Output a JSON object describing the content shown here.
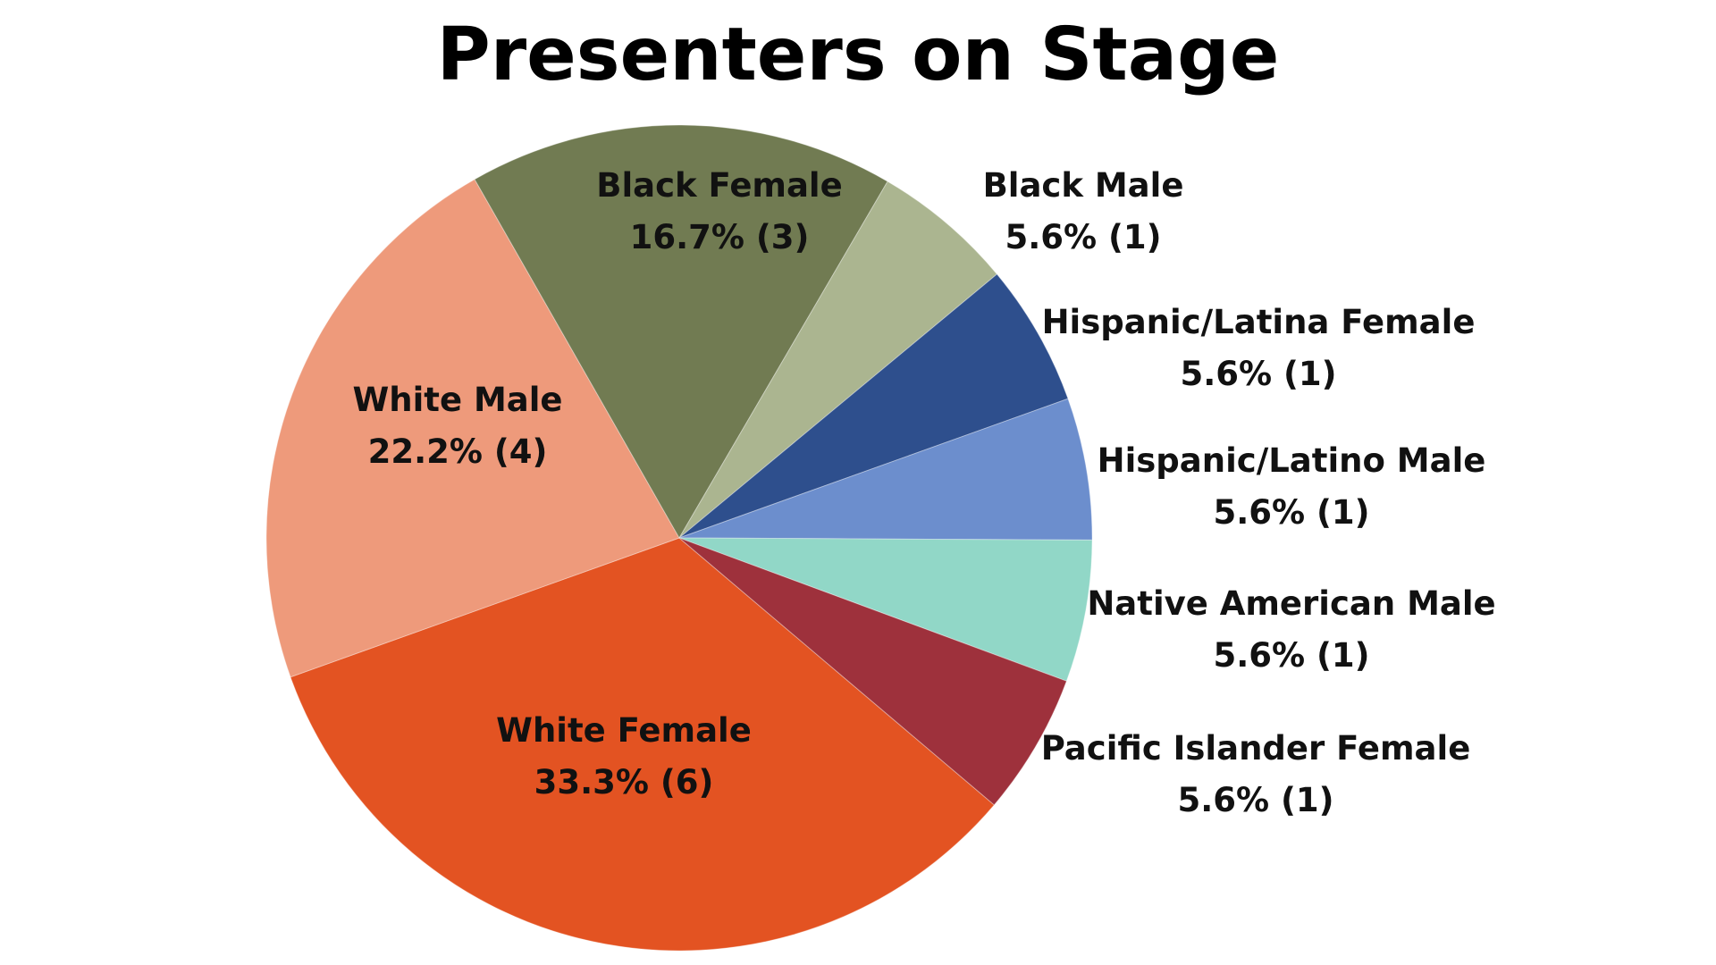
{
  "chart_data": {
    "type": "pie",
    "title": "Presenters on Stage",
    "slices": [
      {
        "name": "White Female",
        "percent_label": "33.3% (6)",
        "value": 6,
        "color": "#E35322"
      },
      {
        "name": "White Male",
        "percent_label": "22.2% (4)",
        "value": 4,
        "color": "#EE9A7B"
      },
      {
        "name": "Black Female",
        "percent_label": "16.7% (3)",
        "value": 3,
        "color": "#717B52"
      },
      {
        "name": "Black Male",
        "percent_label": "5.6% (1)",
        "value": 1,
        "color": "#ABB590"
      },
      {
        "name": "Hispanic/Latina Female",
        "percent_label": "5.6% (1)",
        "value": 1,
        "color": "#2E4F8D"
      },
      {
        "name": "Hispanic/Latino Male",
        "percent_label": "5.6% (1)",
        "value": 1,
        "color": "#6C8ECD"
      },
      {
        "name": "Native American Male",
        "percent_label": "5.6% (1)",
        "value": 1,
        "color": "#91D7C7"
      },
      {
        "name": "Pacific Islander Female",
        "percent_label": "5.6% (1)",
        "value": 1,
        "color": "#9E313C"
      }
    ]
  }
}
